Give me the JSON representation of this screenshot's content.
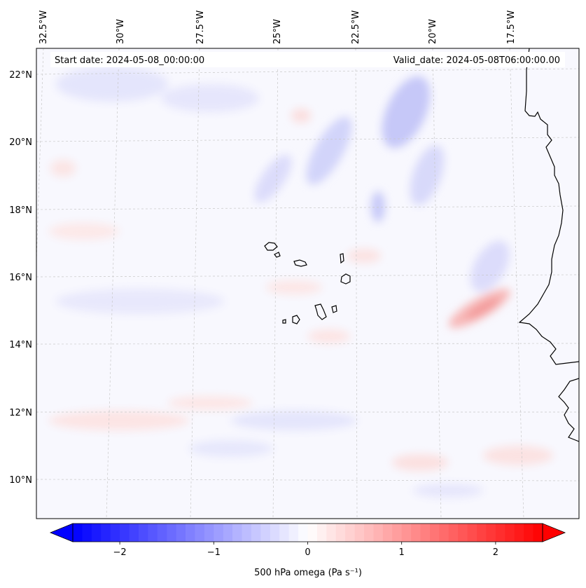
{
  "map": {
    "start_date_text": "Start date: 2024-05-08_00:00:00",
    "valid_date_text": "Valid_date: 2024-05-08T06:00:00.00",
    "lon_labels": [
      "32.5°W",
      "30°W",
      "27.5°W",
      "25°W",
      "22.5°W",
      "20°W",
      "17.5°W"
    ],
    "lat_labels": [
      "22°N",
      "20°N",
      "18°N",
      "16°N",
      "14°N",
      "12°N",
      "10°N"
    ],
    "lon_values": [
      -32.5,
      -30,
      -27.5,
      -25,
      -22.5,
      -20,
      -17.5
    ],
    "lat_values": [
      22,
      20,
      18,
      16,
      14,
      12,
      10
    ],
    "gridlines": true
  },
  "colorbar": {
    "label": "500 hPa omega (Pa s⁻¹)",
    "ticks": [
      "−2",
      "−1",
      "0",
      "1",
      "2"
    ],
    "tick_values": [
      -2,
      -1,
      0,
      1,
      2
    ],
    "range": [
      -2.5,
      2.5
    ],
    "colormap": "bwr",
    "extend": "both",
    "color_min": "#0000ff",
    "color_mid": "#ffffff",
    "color_max": "#ff0000"
  },
  "colors": {
    "coastline": "#000000",
    "field_background": "#f8f8fe",
    "gridline": "#c8c8c8"
  }
}
